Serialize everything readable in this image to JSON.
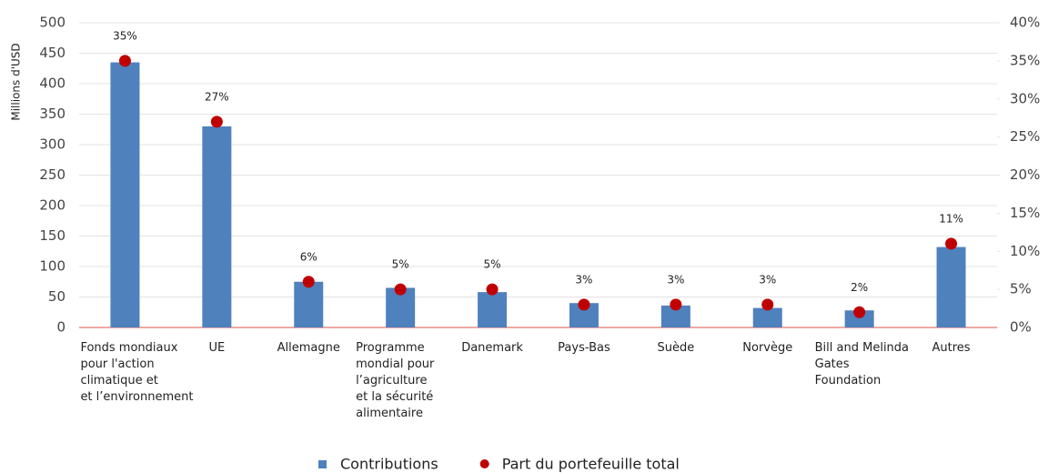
{
  "chart_data": {
    "type": "bar",
    "y_label": "Millions d'USD",
    "categories": [
      [
        "Fonds mondiaux",
        "pour l'action",
        "climatique et",
        "et l’environnement"
      ],
      [
        "UE"
      ],
      [
        "Allemagne"
      ],
      [
        "Programme",
        "mondial pour",
        "l’agriculture",
        "et la sécurité",
        "alimentaire"
      ],
      [
        "Danemark"
      ],
      [
        "Pays-Bas"
      ],
      [
        "Suède"
      ],
      [
        "Norvège"
      ],
      [
        "Bill and Melinda",
        "Gates",
        "Foundation"
      ],
      [
        "Autres"
      ]
    ],
    "series": [
      {
        "name": "Contributions",
        "type": "bar",
        "color": "#4f81bd",
        "values": [
          435,
          330,
          75,
          65,
          58,
          40,
          36,
          32,
          28,
          132
        ]
      },
      {
        "name": "Part du portefeuille total",
        "type": "scatter",
        "axis": "y2",
        "color": "#c00000",
        "values": [
          35,
          27,
          6,
          5,
          5,
          3,
          3,
          3,
          2,
          11
        ],
        "value_labels": [
          "35%",
          "27%",
          "6%",
          "5%",
          "5%",
          "3%",
          "3%",
          "3%",
          "2%",
          "11%"
        ]
      }
    ],
    "ylim": [
      0,
      500
    ],
    "yticks": [
      0,
      50,
      100,
      150,
      200,
      250,
      300,
      350,
      400,
      450,
      500
    ],
    "y2lim": [
      0,
      40
    ],
    "y2ticks": [
      {
        "value": 0,
        "label": "0%"
      },
      {
        "value": 5,
        "label": "5%"
      },
      {
        "value": 10,
        "label": "10%"
      },
      {
        "value": 15,
        "label": "15%"
      },
      {
        "value": 20,
        "label": "20%"
      },
      {
        "value": 25,
        "label": "25%"
      },
      {
        "value": 30,
        "label": "30%"
      },
      {
        "value": 35,
        "label": "35%"
      },
      {
        "value": 40,
        "label": "40%"
      }
    ],
    "grid": true,
    "legend": "bottom"
  }
}
